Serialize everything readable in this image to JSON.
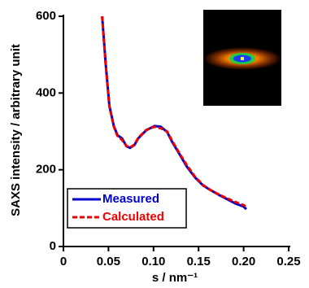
{
  "chart_data": {
    "type": "line",
    "x_label": "s / nm⁻¹",
    "y_label": "SAXS intensity / arbitrary unit",
    "x": [
      0.043,
      0.047,
      0.051,
      0.056,
      0.06,
      0.065,
      0.07,
      0.074,
      0.079,
      0.083,
      0.092,
      0.101,
      0.108,
      0.115,
      0.121,
      0.128,
      0.137,
      0.146,
      0.155,
      0.164,
      0.173,
      0.182,
      0.191,
      0.2,
      0.203
    ],
    "series": [
      {
        "name": "Measured",
        "color": "#0000cc",
        "dashed": false,
        "values": [
          600,
          473,
          367,
          314,
          290,
          282,
          261,
          257,
          265,
          282,
          303,
          314,
          312,
          299,
          271,
          244,
          208,
          180,
          159,
          146,
          134,
          123,
          112,
          104,
          97
        ]
      },
      {
        "name": "Calculated",
        "color": "#ee0000",
        "dashed": true,
        "values": [
          600,
          470,
          365,
          312,
          288,
          278,
          262,
          258,
          266,
          283,
          304,
          312,
          308,
          300,
          274,
          246,
          212,
          182,
          160,
          146,
          135,
          125,
          116,
          108,
          104
        ]
      }
    ],
    "xlim": [
      0,
      0.25
    ],
    "ylim": [
      0,
      600
    ],
    "xticks": [
      0,
      0.05,
      {
        "value": 0.1,
        "label": "0.10"
      },
      0.15,
      {
        "value": 0.2,
        "label": "0.20"
      },
      0.25
    ],
    "yticks": [
      0,
      200,
      400,
      600
    ],
    "legend": "lower-left"
  }
}
